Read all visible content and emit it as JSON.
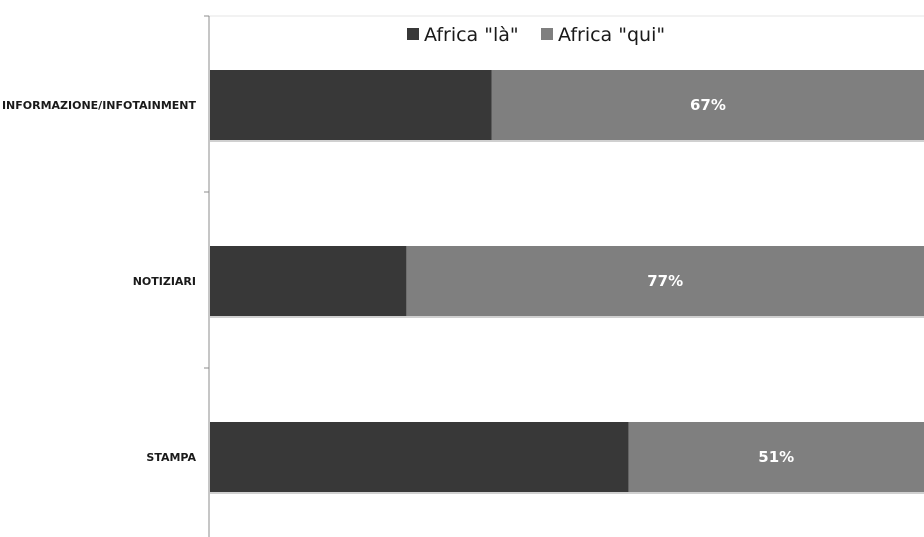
{
  "chart_data": {
    "type": "bar",
    "orientation": "horizontal",
    "stacked": "percent",
    "categories": [
      "INFORMAZIONE/INFOTAINMENT",
      "NOTIZIARI",
      "STAMPA"
    ],
    "series": [
      {
        "name": "Africa \"là\"",
        "values": [
          33,
          23,
          49
        ],
        "color": "#383838"
      },
      {
        "name": "Africa \"qui\"",
        "values": [
          67,
          77,
          51
        ],
        "color": "#7f7f7f"
      }
    ],
    "data_labels": {
      "series": 1,
      "text": [
        "67%",
        "77%",
        "51%"
      ]
    },
    "xlim": [
      0,
      100
    ],
    "legend": "top",
    "grid": false,
    "title": "",
    "xlabel": "",
    "ylabel": ""
  }
}
